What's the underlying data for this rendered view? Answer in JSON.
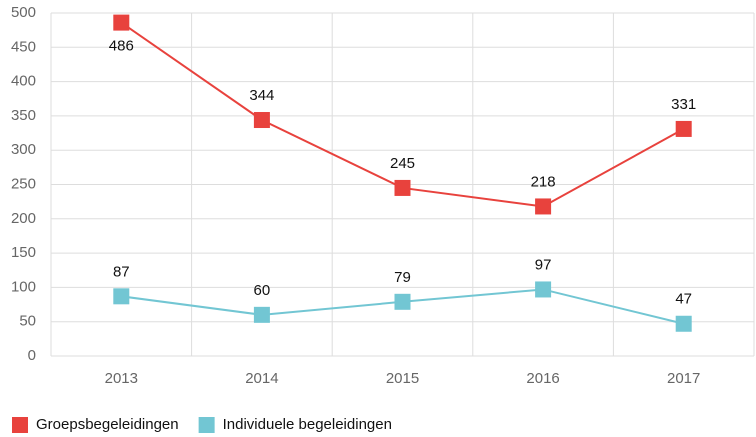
{
  "chart_data": {
    "type": "line",
    "categories": [
      "2013",
      "2014",
      "2015",
      "2016",
      "2017"
    ],
    "series": [
      {
        "name": "Groepsbegeleidingen",
        "color": "#e8423d",
        "values": [
          486,
          344,
          245,
          218,
          331
        ]
      },
      {
        "name": "Individuele begeleidingen",
        "color": "#72c6d3",
        "values": [
          87,
          60,
          79,
          97,
          47
        ]
      }
    ],
    "ylim": [
      0,
      500
    ],
    "yticks": [
      0,
      50,
      100,
      150,
      200,
      250,
      300,
      350,
      400,
      450,
      500
    ],
    "grid": true,
    "legend": "bottom"
  }
}
